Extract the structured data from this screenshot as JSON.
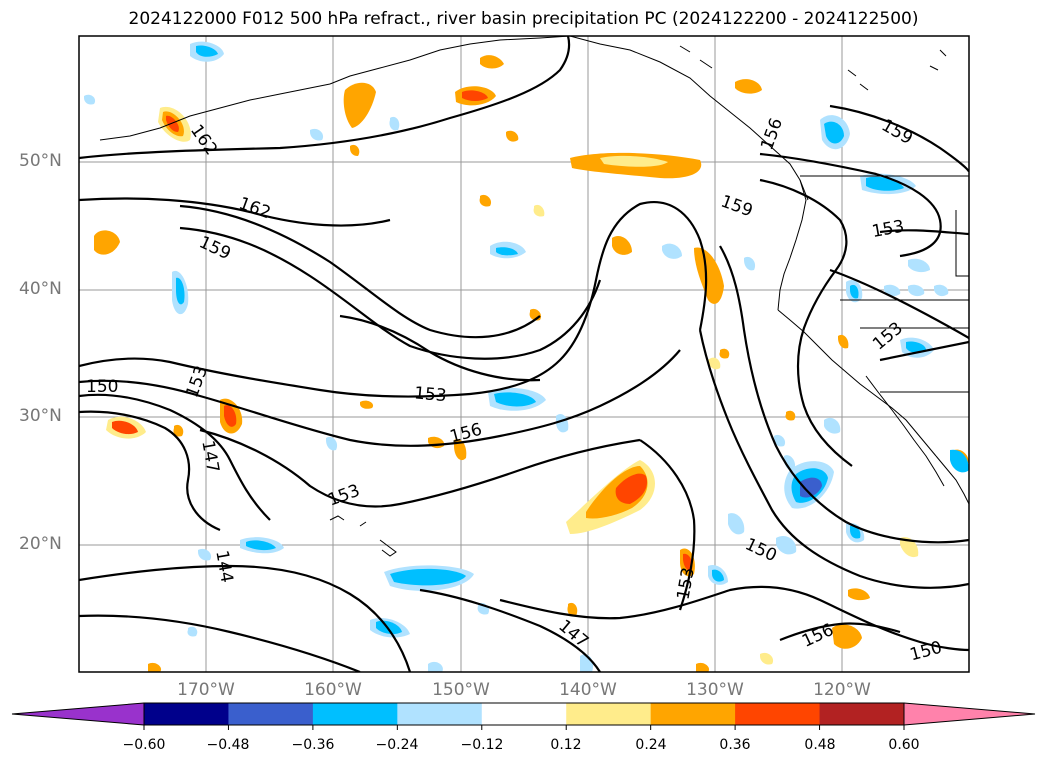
{
  "title": "2024122000 F012 500 hPa refract., river basin precipitation PC (2024122200 - 2024122500)",
  "lat_labels": [
    "50°N",
    "40°N",
    "30°N",
    "20°N"
  ],
  "lon_labels": [
    "170°W",
    "160°W",
    "150°W",
    "140°W",
    "130°W",
    "120°W"
  ],
  "contour_labels": [
    "162",
    "162",
    "159",
    "159",
    "159",
    "156",
    "156",
    "156",
    "153",
    "153",
    "153",
    "153",
    "153",
    "150",
    "150",
    "150",
    "147",
    "147",
    "144",
    "153"
  ],
  "colorbar": {
    "colors": [
      "#9932cc",
      "#00008b",
      "#3a5fcd",
      "#00bfff",
      "#b0e2ff",
      "#ffffff",
      "#ffec8b",
      "#ffa500",
      "#ff4500",
      "#b22222",
      "#ff82ab"
    ],
    "tick_labels": [
      "−0.60",
      "−0.48",
      "−0.36",
      "−0.24",
      "−0.12",
      "0.12",
      "0.24",
      "0.36",
      "0.48",
      "0.60"
    ]
  },
  "colors": {
    "land_line": "#000000",
    "grid": "#999999",
    "axis_label": "#777777"
  }
}
